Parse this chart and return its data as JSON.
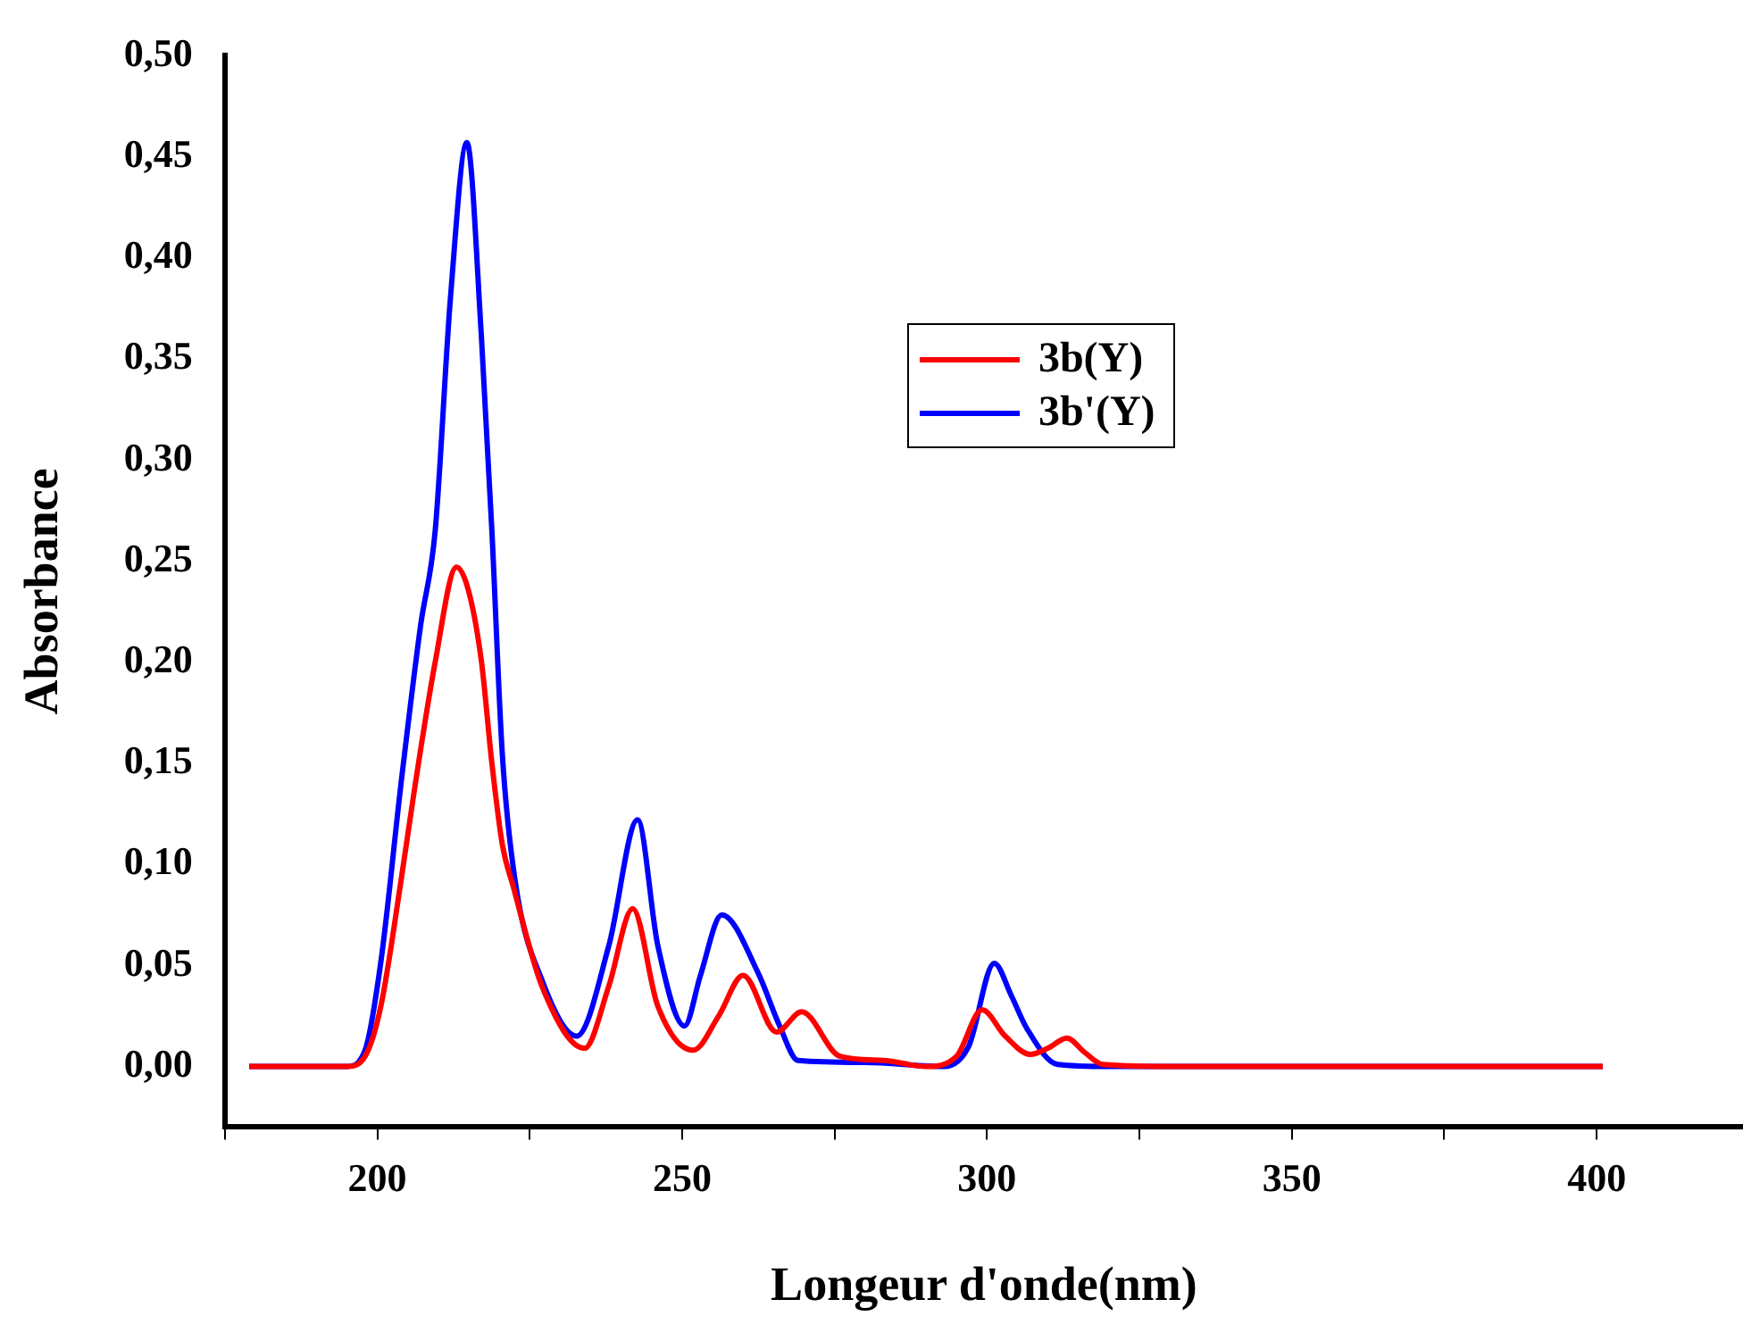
{
  "chart_data": {
    "type": "line",
    "xlabel": "Longeur d'onde(nm)",
    "ylabel": "Absorbance",
    "xlim": [
      175,
      424
    ],
    "xticks": [
      {
        "value": 175,
        "label": null
      },
      200,
      {
        "value": 225,
        "label": null
      },
      250,
      {
        "value": 275,
        "label": null
      },
      300,
      {
        "value": 325,
        "label": null
      },
      350,
      {
        "value": 375,
        "label": null
      },
      400
    ],
    "ylim": [
      -0.03,
      0.5
    ],
    "yticks": [
      {
        "value": 0,
        "label": "0,00"
      },
      {
        "value": 0.05,
        "label": "0,05"
      },
      {
        "value": 0.1,
        "label": "0,10"
      },
      {
        "value": 0.15,
        "label": "0,15"
      },
      {
        "value": 0.2,
        "label": "0,20"
      },
      {
        "value": 0.25,
        "label": "0,25"
      },
      {
        "value": 0.3,
        "label": "0,30"
      },
      {
        "value": 0.35,
        "label": "0,35"
      },
      {
        "value": 0.4,
        "label": "0,40"
      },
      {
        "value": 0.45,
        "label": "0,45"
      },
      {
        "value": 0.5,
        "label": "0,50"
      }
    ],
    "grid": false,
    "legend": "top right",
    "marker": "none",
    "line_style": "solid",
    "series": [
      {
        "name": "3b(Y)",
        "color": "#ff0000",
        "x": [
          179,
          195,
          198,
          200.6,
          203.9,
          206,
          209.5,
          213,
          215,
          217.1,
          218.8,
          220.5,
          222.3,
          227.1,
          234,
          238,
          241.9,
          246,
          251.8,
          256,
          260,
          265.5,
          269.6,
          275.9,
          283,
          290,
          295,
          299.2,
          303,
          307.1,
          310,
          313.1,
          316,
          319,
          330,
          401
        ],
        "values": [
          0,
          0,
          0.005,
          0.03,
          0.092,
          0.135,
          0.2,
          0.247,
          0.235,
          0.2,
          0.15,
          0.11,
          0.089,
          0.039,
          0.009,
          0.04,
          0.078,
          0.03,
          0.008,
          0.025,
          0.045,
          0.017,
          0.027,
          0.005,
          0.003,
          0,
          0.005,
          0.028,
          0.015,
          0.006,
          0.009,
          0.014,
          0.007,
          0.001,
          0,
          0
        ]
      },
      {
        "name": "3b'(Y)",
        "color": "#0000ff",
        "x": [
          179,
          195,
          198,
          200.6,
          203.9,
          207.1,
          209.5,
          212,
          214.7,
          217.1,
          218.8,
          220.5,
          222.6,
          227.1,
          232.7,
          238,
          242.7,
          246,
          250.4,
          253,
          256.5,
          262.5,
          266,
          269,
          280,
          293,
          297,
          301.2,
          304,
          306.5,
          311.6,
          320,
          401
        ],
        "values": [
          0,
          0,
          0.008,
          0.052,
          0.14,
          0.218,
          0.265,
          0.38,
          0.457,
          0.36,
          0.265,
          0.155,
          0.092,
          0.042,
          0.015,
          0.06,
          0.122,
          0.06,
          0.02,
          0.045,
          0.075,
          0.046,
          0.02,
          0.003,
          0.002,
          0,
          0.01,
          0.051,
          0.035,
          0.019,
          0.001,
          0,
          0
        ]
      }
    ]
  }
}
